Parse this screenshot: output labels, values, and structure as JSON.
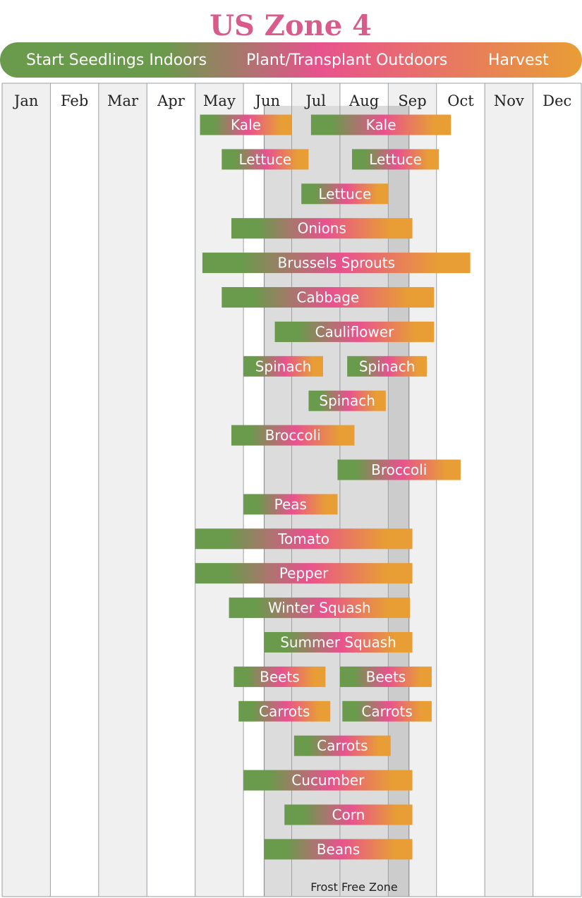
{
  "title": "US Zone 4",
  "colors": {
    "title": "#d95b8c",
    "seedling": "#6a9a4c",
    "transplant": "#e8528e",
    "harvest": "#e89e35",
    "column_shade": "#f0f0f0",
    "frost_zone": "#dcdcdc",
    "frost_zone_edge": "#cccccc",
    "grid": "#9aa0a6"
  },
  "legend": {
    "seedlings": "Start Seedlings Indoors",
    "transplant": "Plant/Transplant Outdoors",
    "harvest": "Harvest"
  },
  "frost_zone": {
    "label": "Frost Free Zone",
    "start": 5.43,
    "end": 8.43
  },
  "chart_data": {
    "type": "gantt",
    "title": "US Zone 4",
    "x_unit": "month",
    "x_categories": [
      "Jan",
      "Feb",
      "Mar",
      "Apr",
      "May",
      "Jun",
      "Jul",
      "Aug",
      "Sep",
      "Oct",
      "Nov",
      "Dec"
    ],
    "xlim": [
      0,
      12
    ],
    "stages": [
      "Start Seedlings Indoors",
      "Plant/Transplant Outdoors",
      "Harvest"
    ],
    "rows": [
      {
        "crops": [
          {
            "name": "Kale",
            "start": 4.1,
            "end": 6.0
          },
          {
            "name": "Kale",
            "start": 6.4,
            "end": 9.3
          }
        ]
      },
      {
        "crops": [
          {
            "name": "Lettuce",
            "start": 4.55,
            "end": 6.35
          },
          {
            "name": "Lettuce",
            "start": 7.25,
            "end": 9.05
          }
        ]
      },
      {
        "crops": [
          {
            "name": "Lettuce",
            "start": 6.2,
            "end": 8.0
          }
        ]
      },
      {
        "crops": [
          {
            "name": "Onions",
            "start": 4.75,
            "end": 8.5
          }
        ]
      },
      {
        "crops": [
          {
            "name": "Brussels Sprouts",
            "start": 4.15,
            "end": 9.7
          }
        ]
      },
      {
        "crops": [
          {
            "name": "Cabbage",
            "start": 4.55,
            "end": 8.95
          }
        ]
      },
      {
        "crops": [
          {
            "name": "Cauliflower",
            "start": 5.65,
            "end": 8.95
          }
        ]
      },
      {
        "crops": [
          {
            "name": "Spinach",
            "start": 5.0,
            "end": 6.65
          },
          {
            "name": "Spinach",
            "start": 7.15,
            "end": 8.8
          }
        ]
      },
      {
        "crops": [
          {
            "name": "Spinach",
            "start": 6.35,
            "end": 7.95
          }
        ]
      },
      {
        "crops": [
          {
            "name": "Broccoli",
            "start": 4.75,
            "end": 7.3
          }
        ]
      },
      {
        "crops": [
          {
            "name": "Broccoli",
            "start": 6.95,
            "end": 9.5
          }
        ]
      },
      {
        "crops": [
          {
            "name": "Peas",
            "start": 5.0,
            "end": 6.95
          }
        ]
      },
      {
        "crops": [
          {
            "name": "Tomato",
            "start": 4.0,
            "end": 8.5
          }
        ]
      },
      {
        "crops": [
          {
            "name": "Pepper",
            "start": 4.0,
            "end": 8.5
          }
        ]
      },
      {
        "crops": [
          {
            "name": "Winter Squash",
            "start": 4.7,
            "end": 8.45
          }
        ]
      },
      {
        "crops": [
          {
            "name": "Summer Squash",
            "start": 5.43,
            "end": 8.5
          }
        ]
      },
      {
        "crops": [
          {
            "name": "Beets",
            "start": 4.8,
            "end": 6.7
          },
          {
            "name": "Beets",
            "start": 7.0,
            "end": 8.9
          }
        ]
      },
      {
        "crops": [
          {
            "name": "Carrots",
            "start": 4.9,
            "end": 6.8
          },
          {
            "name": "Carrots",
            "start": 7.05,
            "end": 8.9
          }
        ]
      },
      {
        "crops": [
          {
            "name": "Carrots",
            "start": 6.05,
            "end": 8.05
          }
        ]
      },
      {
        "crops": [
          {
            "name": "Cucumber",
            "start": 5.0,
            "end": 8.5
          }
        ]
      },
      {
        "crops": [
          {
            "name": "Corn",
            "start": 5.85,
            "end": 8.5
          }
        ]
      },
      {
        "crops": [
          {
            "name": "Beans",
            "start": 5.43,
            "end": 8.5
          }
        ]
      }
    ]
  }
}
